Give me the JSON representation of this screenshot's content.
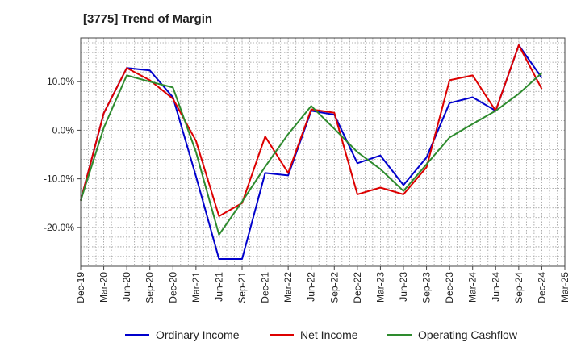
{
  "chart_data": {
    "type": "line",
    "title": "[3775]  Trend of Margin",
    "xlabel": "",
    "ylabel": "",
    "x": [
      "Dec-19",
      "Mar-20",
      "Jun-20",
      "Sep-20",
      "Dec-20",
      "Mar-21",
      "Jun-21",
      "Sep-21",
      "Dec-21",
      "Mar-22",
      "Jun-22",
      "Sep-22",
      "Dec-22",
      "Mar-23",
      "Jun-23",
      "Sep-23",
      "Dec-23",
      "Mar-24",
      "Jun-24",
      "Sep-24",
      "Dec-24",
      "Mar-25"
    ],
    "x_ticks": [
      "Dec-19",
      "Mar-20",
      "Jun-20",
      "Sep-20",
      "Dec-20",
      "Mar-21",
      "Jun-21",
      "Sep-21",
      "Dec-21",
      "Mar-22",
      "Jun-22",
      "Sep-22",
      "Dec-22",
      "Mar-23",
      "Jun-23",
      "Sep-23",
      "Dec-23",
      "Mar-24",
      "Jun-24",
      "Sep-24",
      "Dec-24",
      "Mar-25"
    ],
    "y_ticks": [
      {
        "value": 10,
        "label": "10.0%"
      },
      {
        "value": 0,
        "label": "0.0%"
      },
      {
        "value": -10,
        "label": "-10.0%"
      },
      {
        "value": -20,
        "label": "-20.0%"
      }
    ],
    "ylim": [
      -28,
      19
    ],
    "grid": true,
    "legend_position": "bottom",
    "series": [
      {
        "name": "Ordinary Income",
        "color": "#0000cc",
        "values": [
          -14.5,
          3.5,
          12.8,
          12.3,
          6.8,
          -9.5,
          -26.5,
          -26.5,
          -8.8,
          -9.3,
          4.0,
          3.2,
          -6.8,
          -5.2,
          -11.3,
          -5.6,
          5.6,
          6.8,
          4.0,
          17.5,
          10.8,
          null
        ]
      },
      {
        "name": "Net Income",
        "color": "#dd0000",
        "values": [
          -14.5,
          3.5,
          12.8,
          10.3,
          6.5,
          -2.2,
          -17.7,
          -15.0,
          -1.3,
          -8.8,
          4.3,
          3.6,
          -13.2,
          -11.8,
          -13.2,
          -7.6,
          10.3,
          11.3,
          4.0,
          17.5,
          8.5,
          null
        ]
      },
      {
        "name": "Operating Cashflow",
        "color": "#2e8b2e",
        "values": [
          -14.5,
          0.5,
          11.3,
          10.0,
          8.8,
          -4.5,
          -21.5,
          -14.7,
          -7.5,
          -0.8,
          5.0,
          0.3,
          -4.5,
          -8.0,
          -12.5,
          -7.0,
          -1.5,
          1.3,
          4.0,
          7.5,
          11.8,
          null
        ]
      }
    ]
  }
}
